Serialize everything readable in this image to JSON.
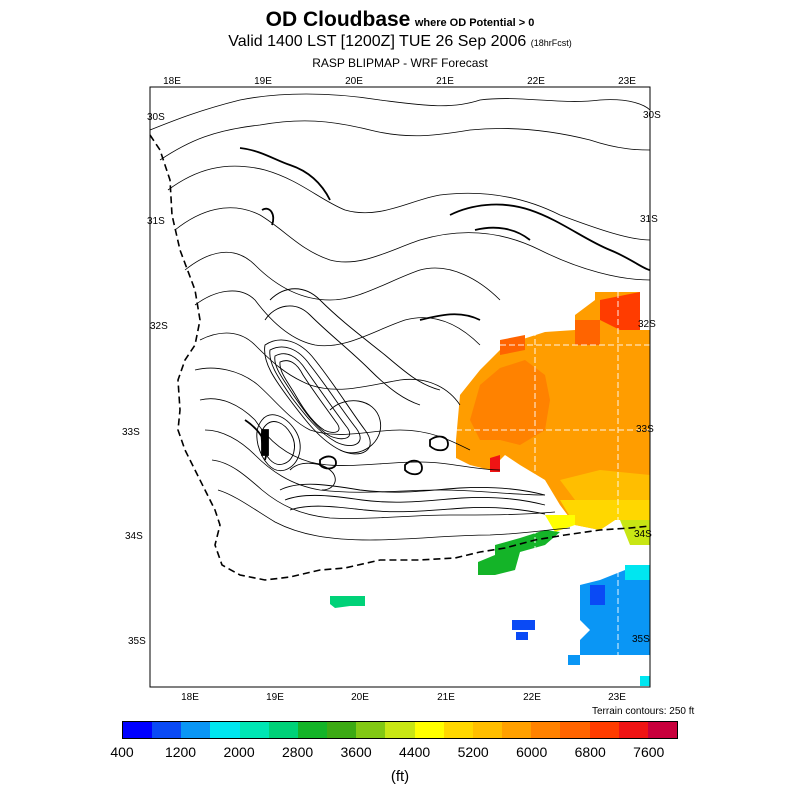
{
  "title": {
    "main": "OD Cloudbase",
    "condition": "where OD Potential > 0",
    "valid": "Valid 1400 LST [1200Z] TUE 26 Sep 2006",
    "forecast_hours": "(18hrFcst)",
    "model": "RASP BLIPMAP - WRF Forecast"
  },
  "map": {
    "top_lon_labels": [
      "18E",
      "19E",
      "20E",
      "21E",
      "22E",
      "23E"
    ],
    "bottom_lon_labels": [
      "18E",
      "19E",
      "20E",
      "21E",
      "22E",
      "23E"
    ],
    "left_lat_labels": [
      "30S",
      "31S",
      "32S",
      "33S",
      "34S",
      "35S"
    ],
    "right_lat_labels": [
      "30S",
      "31S",
      "32S",
      "33S",
      "34S",
      "35S"
    ],
    "terrain_note": "Terrain contours: 250 ft"
  },
  "colorbar": {
    "colors": [
      "#0000ff",
      "#0a4af5",
      "#0a96f5",
      "#00e6f0",
      "#00e6b4",
      "#00d278",
      "#14b428",
      "#3caa14",
      "#82c814",
      "#c8e614",
      "#ffff00",
      "#ffd700",
      "#ffbe00",
      "#ffa000",
      "#ff8200",
      "#ff6400",
      "#ff3c00",
      "#f01414",
      "#c8003c"
    ],
    "labels": [
      "400",
      "1200",
      "2000",
      "2800",
      "3600",
      "4400",
      "5200",
      "6000",
      "6800",
      "7600"
    ],
    "units": "(ft)"
  }
}
